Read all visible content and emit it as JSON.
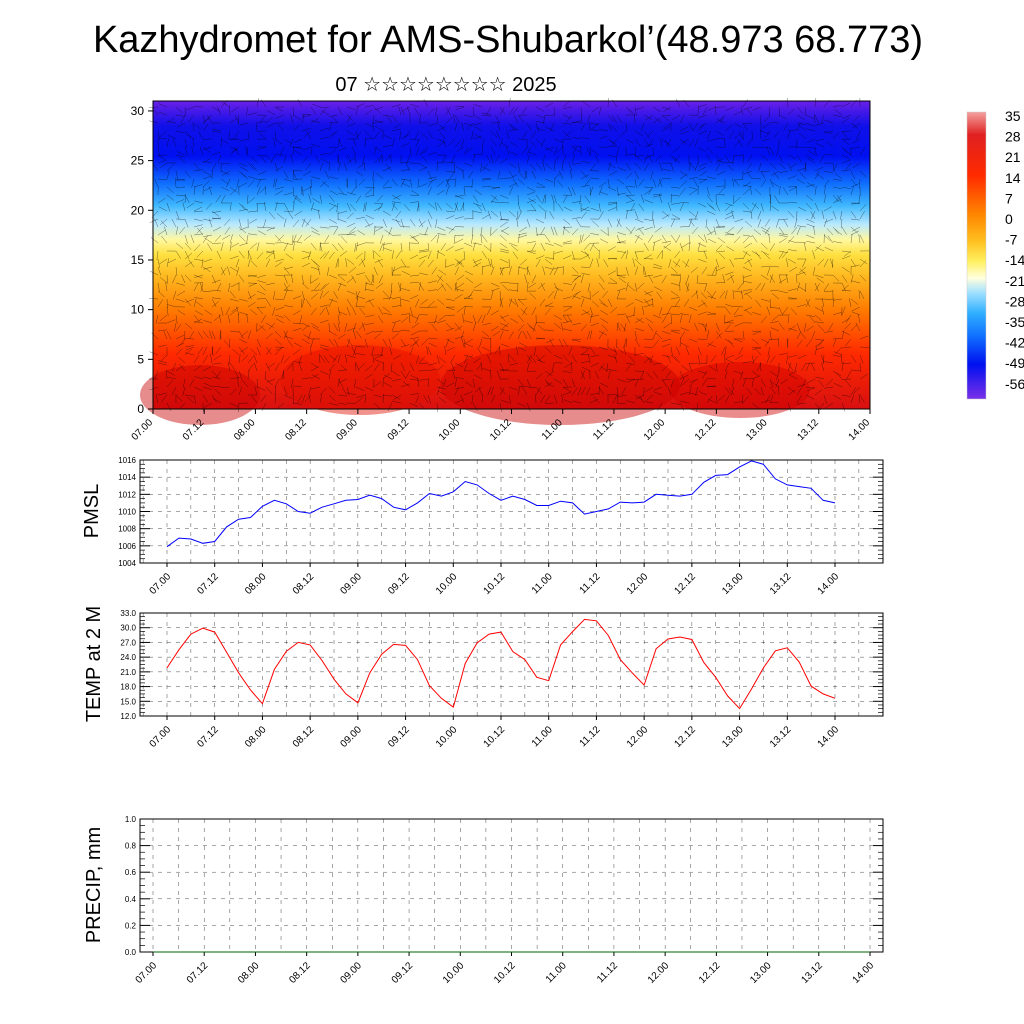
{
  "title": "Kazhydromet for AMS-Shubarkol’(48.973 68.773)",
  "subtitle": "07 ☆☆☆☆☆☆☆☆ 2025",
  "chart_data": [
    {
      "type": "heatmap",
      "name": "temperature-wind-profile",
      "x_ticks": [
        "07.00",
        "07.12",
        "08.00",
        "08.12",
        "09.00",
        "09.12",
        "10.00",
        "10.12",
        "11.00",
        "11.12",
        "12.00",
        "12.12",
        "13.00",
        "13.12",
        "14.00"
      ],
      "y_ticks": [
        "0",
        "5",
        "10",
        "15",
        "20",
        "25",
        "30"
      ],
      "ylim": [
        0,
        31
      ],
      "colorbar_labels": [
        "35",
        "28",
        "21",
        "14",
        "7",
        "0",
        "-7",
        "-14",
        "-21",
        "-28",
        "-35",
        "-42",
        "-49",
        "-56"
      ],
      "colors": [
        "#f4a0a0",
        "#d80000",
        "#ff3a00",
        "#ff8800",
        "#ffc020",
        "#fff060",
        "#ffffd0",
        "#40c8ff",
        "#1080ff",
        "#0010f0",
        "#6a20e8"
      ],
      "wind_barbs": true
    },
    {
      "type": "line",
      "name": "pmsl",
      "ylabel": "PMSL",
      "x_ticks": [
        "07.00",
        "07.12",
        "08.00",
        "08.12",
        "09.00",
        "09.12",
        "10.00",
        "10.12",
        "11.00",
        "11.12",
        "12.00",
        "12.12",
        "13.00",
        "13.12",
        "14.00"
      ],
      "y_ticks": [
        "1004",
        "1006",
        "1008",
        "1010",
        "1012",
        "1014",
        "1016"
      ],
      "ylim": [
        1004,
        1016
      ],
      "color": "#0000ff",
      "values": [
        1005.9,
        1006.9,
        1006.8,
        1006.3,
        1006.5,
        1008.2,
        1009.1,
        1009.3,
        1010.6,
        1011.3,
        1010.9,
        1010.0,
        1009.8,
        1010.5,
        1010.9,
        1011.3,
        1011.4,
        1011.9,
        1011.5,
        1010.5,
        1010.2,
        1011.0,
        1012.1,
        1011.8,
        1012.3,
        1013.5,
        1013.1,
        1012.1,
        1011.3,
        1011.8,
        1011.4,
        1010.7,
        1010.7,
        1011.2,
        1011.0,
        1009.7,
        1010.0,
        1010.3,
        1011.1,
        1011.0,
        1011.1,
        1012.0,
        1011.9,
        1011.8,
        1012.0,
        1013.4,
        1014.2,
        1014.3,
        1015.2,
        1015.9,
        1015.5,
        1013.8,
        1013.1,
        1012.9,
        1012.7,
        1011.3,
        1011.0
      ]
    },
    {
      "type": "line",
      "name": "temp-2m",
      "ylabel": "TEMP at 2 M",
      "x_ticks": [
        "07.00",
        "07.12",
        "08.00",
        "08.12",
        "09.00",
        "09.12",
        "10.00",
        "10.12",
        "11.00",
        "11.12",
        "12.00",
        "12.12",
        "13.00",
        "13.12",
        "14.00"
      ],
      "y_ticks": [
        "12.0",
        "15.0",
        "18.0",
        "21.0",
        "24.0",
        "27.0",
        "30.0",
        "33.0"
      ],
      "ylim": [
        12,
        33
      ],
      "color": "#ff0000",
      "values": [
        21.8,
        25.5,
        28.7,
        29.9,
        29.1,
        25.0,
        20.8,
        17.3,
        14.5,
        21.5,
        25.2,
        27.0,
        26.5,
        23.3,
        19.5,
        16.5,
        14.7,
        20.8,
        24.6,
        26.6,
        26.4,
        23.5,
        18.2,
        15.6,
        13.8,
        22.7,
        26.9,
        28.7,
        29.1,
        25.1,
        23.5,
        19.9,
        19.2,
        26.5,
        29.2,
        31.7,
        31.4,
        28.4,
        23.5,
        20.8,
        18.3,
        25.7,
        27.7,
        28.1,
        27.6,
        22.9,
        19.9,
        16.1,
        13.5,
        17.5,
        21.8,
        25.3,
        25.9,
        23.0,
        18.1,
        16.5,
        15.6
      ]
    },
    {
      "type": "line",
      "name": "precip",
      "ylabel": "PRECIP, mm",
      "x_ticks": [
        "07.00",
        "07.12",
        "08.00",
        "08.12",
        "09.00",
        "09.12",
        "10.00",
        "10.12",
        "11.00",
        "11.12",
        "12.00",
        "12.12",
        "13.00",
        "13.12",
        "14.00"
      ],
      "y_ticks": [
        "0.0",
        "0.2",
        "0.4",
        "0.6",
        "0.8",
        "1.0"
      ],
      "ylim": [
        0,
        1
      ],
      "color": "#006400",
      "values": [
        0,
        0,
        0,
        0,
        0,
        0,
        0,
        0,
        0,
        0,
        0,
        0,
        0,
        0,
        0,
        0,
        0,
        0,
        0,
        0,
        0,
        0,
        0,
        0,
        0,
        0,
        0,
        0,
        0,
        0,
        0,
        0,
        0,
        0,
        0,
        0,
        0,
        0,
        0,
        0,
        0,
        0,
        0,
        0,
        0,
        0,
        0,
        0,
        0,
        0,
        0,
        0,
        0,
        0,
        0,
        0,
        0
      ]
    }
  ]
}
